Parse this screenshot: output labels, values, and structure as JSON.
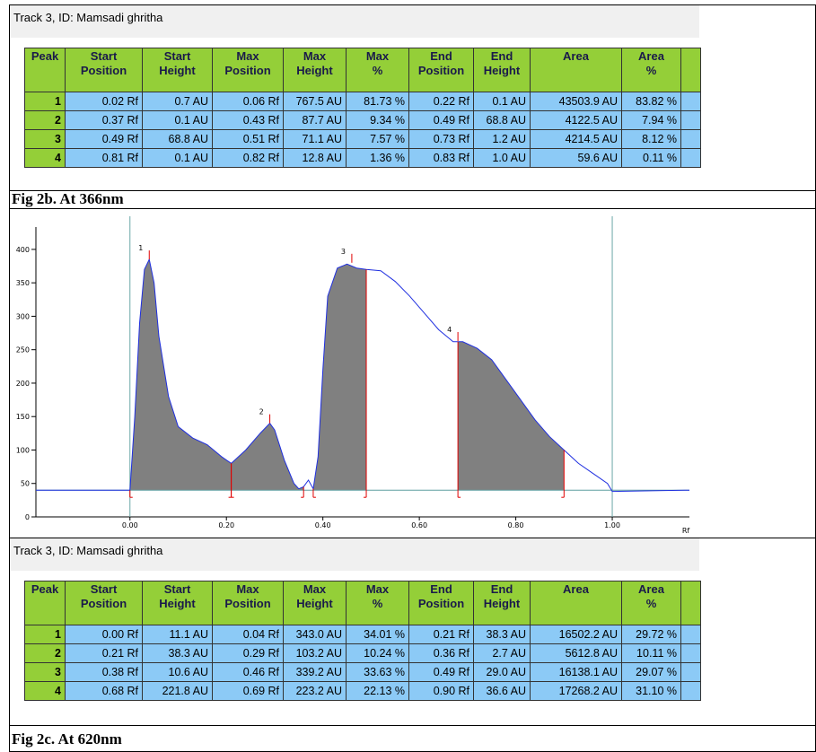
{
  "table1": {
    "title": "Track 3, ID: Mamsadi ghritha",
    "headers": [
      [
        "Peak"
      ],
      [
        "Start",
        "Position"
      ],
      [
        "Start",
        "Height"
      ],
      [
        "Max",
        "Position"
      ],
      [
        "Max",
        "Height"
      ],
      [
        "Max",
        "%"
      ],
      [
        "End",
        "Position"
      ],
      [
        "End",
        "Height"
      ],
      [
        "Area"
      ],
      [
        "Area",
        "%"
      ]
    ],
    "rows": [
      [
        "1",
        "0.02 Rf",
        "0.7 AU",
        "0.06 Rf",
        "767.5 AU",
        "81.73 %",
        "0.22 Rf",
        "0.1 AU",
        "43503.9 AU",
        "83.82 %"
      ],
      [
        "2",
        "0.37 Rf",
        "0.1 AU",
        "0.43 Rf",
        "87.7 AU",
        "9.34 %",
        "0.49 Rf",
        "68.8 AU",
        "4122.5 AU",
        "7.94 %"
      ],
      [
        "3",
        "0.49 Rf",
        "68.8 AU",
        "0.51 Rf",
        "71.1 AU",
        "7.57 %",
        "0.73 Rf",
        "1.2 AU",
        "4214.5 AU",
        "8.12 %"
      ],
      [
        "4",
        "0.81 Rf",
        "0.1 AU",
        "0.82 Rf",
        "12.8 AU",
        "1.36 %",
        "0.83 Rf",
        "1.0 AU",
        "59.6 AU",
        "0.11 %"
      ]
    ]
  },
  "caption1": "Fig 2b. At 366nm",
  "chromatogram": {
    "type": "line",
    "x_label": "Rf",
    "xlim": [
      -0.195,
      1.16
    ],
    "ylim": [
      0,
      420
    ],
    "xticks": [
      {
        "value": 0,
        "label": "0.00"
      },
      {
        "value": 0.2,
        "label": "0.20"
      },
      {
        "value": 0.4,
        "label": "0.40"
      },
      {
        "value": 0.6,
        "label": "0.60"
      },
      {
        "value": 0.8,
        "label": "0.80"
      },
      {
        "value": 1,
        "label": "1.00"
      }
    ],
    "yticks": [
      0,
      50,
      100,
      150,
      200,
      250,
      300,
      350,
      400
    ],
    "baseline": 40,
    "x": [
      -0.195,
      0,
      0.01,
      0.02,
      0.03,
      0.04,
      0.05,
      0.06,
      0.08,
      0.1,
      0.13,
      0.16,
      0.19,
      0.21,
      0.24,
      0.27,
      0.29,
      0.3,
      0.32,
      0.34,
      0.35,
      0.36,
      0.37,
      0.38,
      0.39,
      0.4,
      0.41,
      0.43,
      0.45,
      0.47,
      0.49,
      0.52,
      0.55,
      0.58,
      0.61,
      0.64,
      0.67,
      0.69,
      0.72,
      0.75,
      0.78,
      0.81,
      0.84,
      0.87,
      0.9,
      0.93,
      0.96,
      0.99,
      1.0,
      1.16
    ],
    "values": [
      40,
      40,
      150,
      290,
      370,
      385,
      350,
      270,
      180,
      135,
      118,
      108,
      90,
      80,
      100,
      125,
      140,
      130,
      85,
      50,
      42,
      45,
      55,
      42,
      90,
      220,
      330,
      372,
      378,
      372,
      370,
      368,
      352,
      330,
      305,
      280,
      262,
      262,
      252,
      235,
      205,
      175,
      145,
      120,
      100,
      80,
      65,
      50,
      38,
      40
    ],
    "peaks": [
      {
        "label": "1",
        "x": 0.04,
        "y": 385,
        "start": 0,
        "end": 0.21
      },
      {
        "label": "2",
        "x": 0.29,
        "y": 140,
        "start": 0.21,
        "end": 0.36
      },
      {
        "label": "3",
        "x": 0.46,
        "y": 380,
        "start": 0.38,
        "end": 0.49
      },
      {
        "label": "4",
        "x": 0.68,
        "y": 263,
        "start": 0.68,
        "end": 0.9
      }
    ],
    "markers": [
      0,
      1
    ]
  },
  "table2": {
    "title": "Track 3, ID: Mamsadi ghritha",
    "headers": [
      [
        "Peak"
      ],
      [
        "Start",
        "Position"
      ],
      [
        "Start",
        "Height"
      ],
      [
        "Max",
        "Position"
      ],
      [
        "Max",
        "Height"
      ],
      [
        "Max",
        "%"
      ],
      [
        "End",
        "Position"
      ],
      [
        "End",
        "Height"
      ],
      [
        "Area"
      ],
      [
        "Area",
        "%"
      ]
    ],
    "rows": [
      [
        "1",
        "0.00 Rf",
        "11.1 AU",
        "0.04 Rf",
        "343.0 AU",
        "34.01 %",
        "0.21 Rf",
        "38.3 AU",
        "16502.2 AU",
        "29.72 %"
      ],
      [
        "2",
        "0.21 Rf",
        "38.3 AU",
        "0.29 Rf",
        "103.2 AU",
        "10.24 %",
        "0.36 Rf",
        "2.7 AU",
        "5612.8 AU",
        "10.11 %"
      ],
      [
        "3",
        "0.38 Rf",
        "10.6 AU",
        "0.46 Rf",
        "339.2 AU",
        "33.63 %",
        "0.49 Rf",
        "29.0 AU",
        "16138.1 AU",
        "29.07 %"
      ],
      [
        "4",
        "0.68 Rf",
        "221.8 AU",
        "0.69 Rf",
        "223.2 AU",
        "22.13 %",
        "0.90 Rf",
        "36.6 AU",
        "17268.2 AU",
        "31.10 %"
      ]
    ]
  },
  "caption2": "Fig 2c. At 620nm"
}
